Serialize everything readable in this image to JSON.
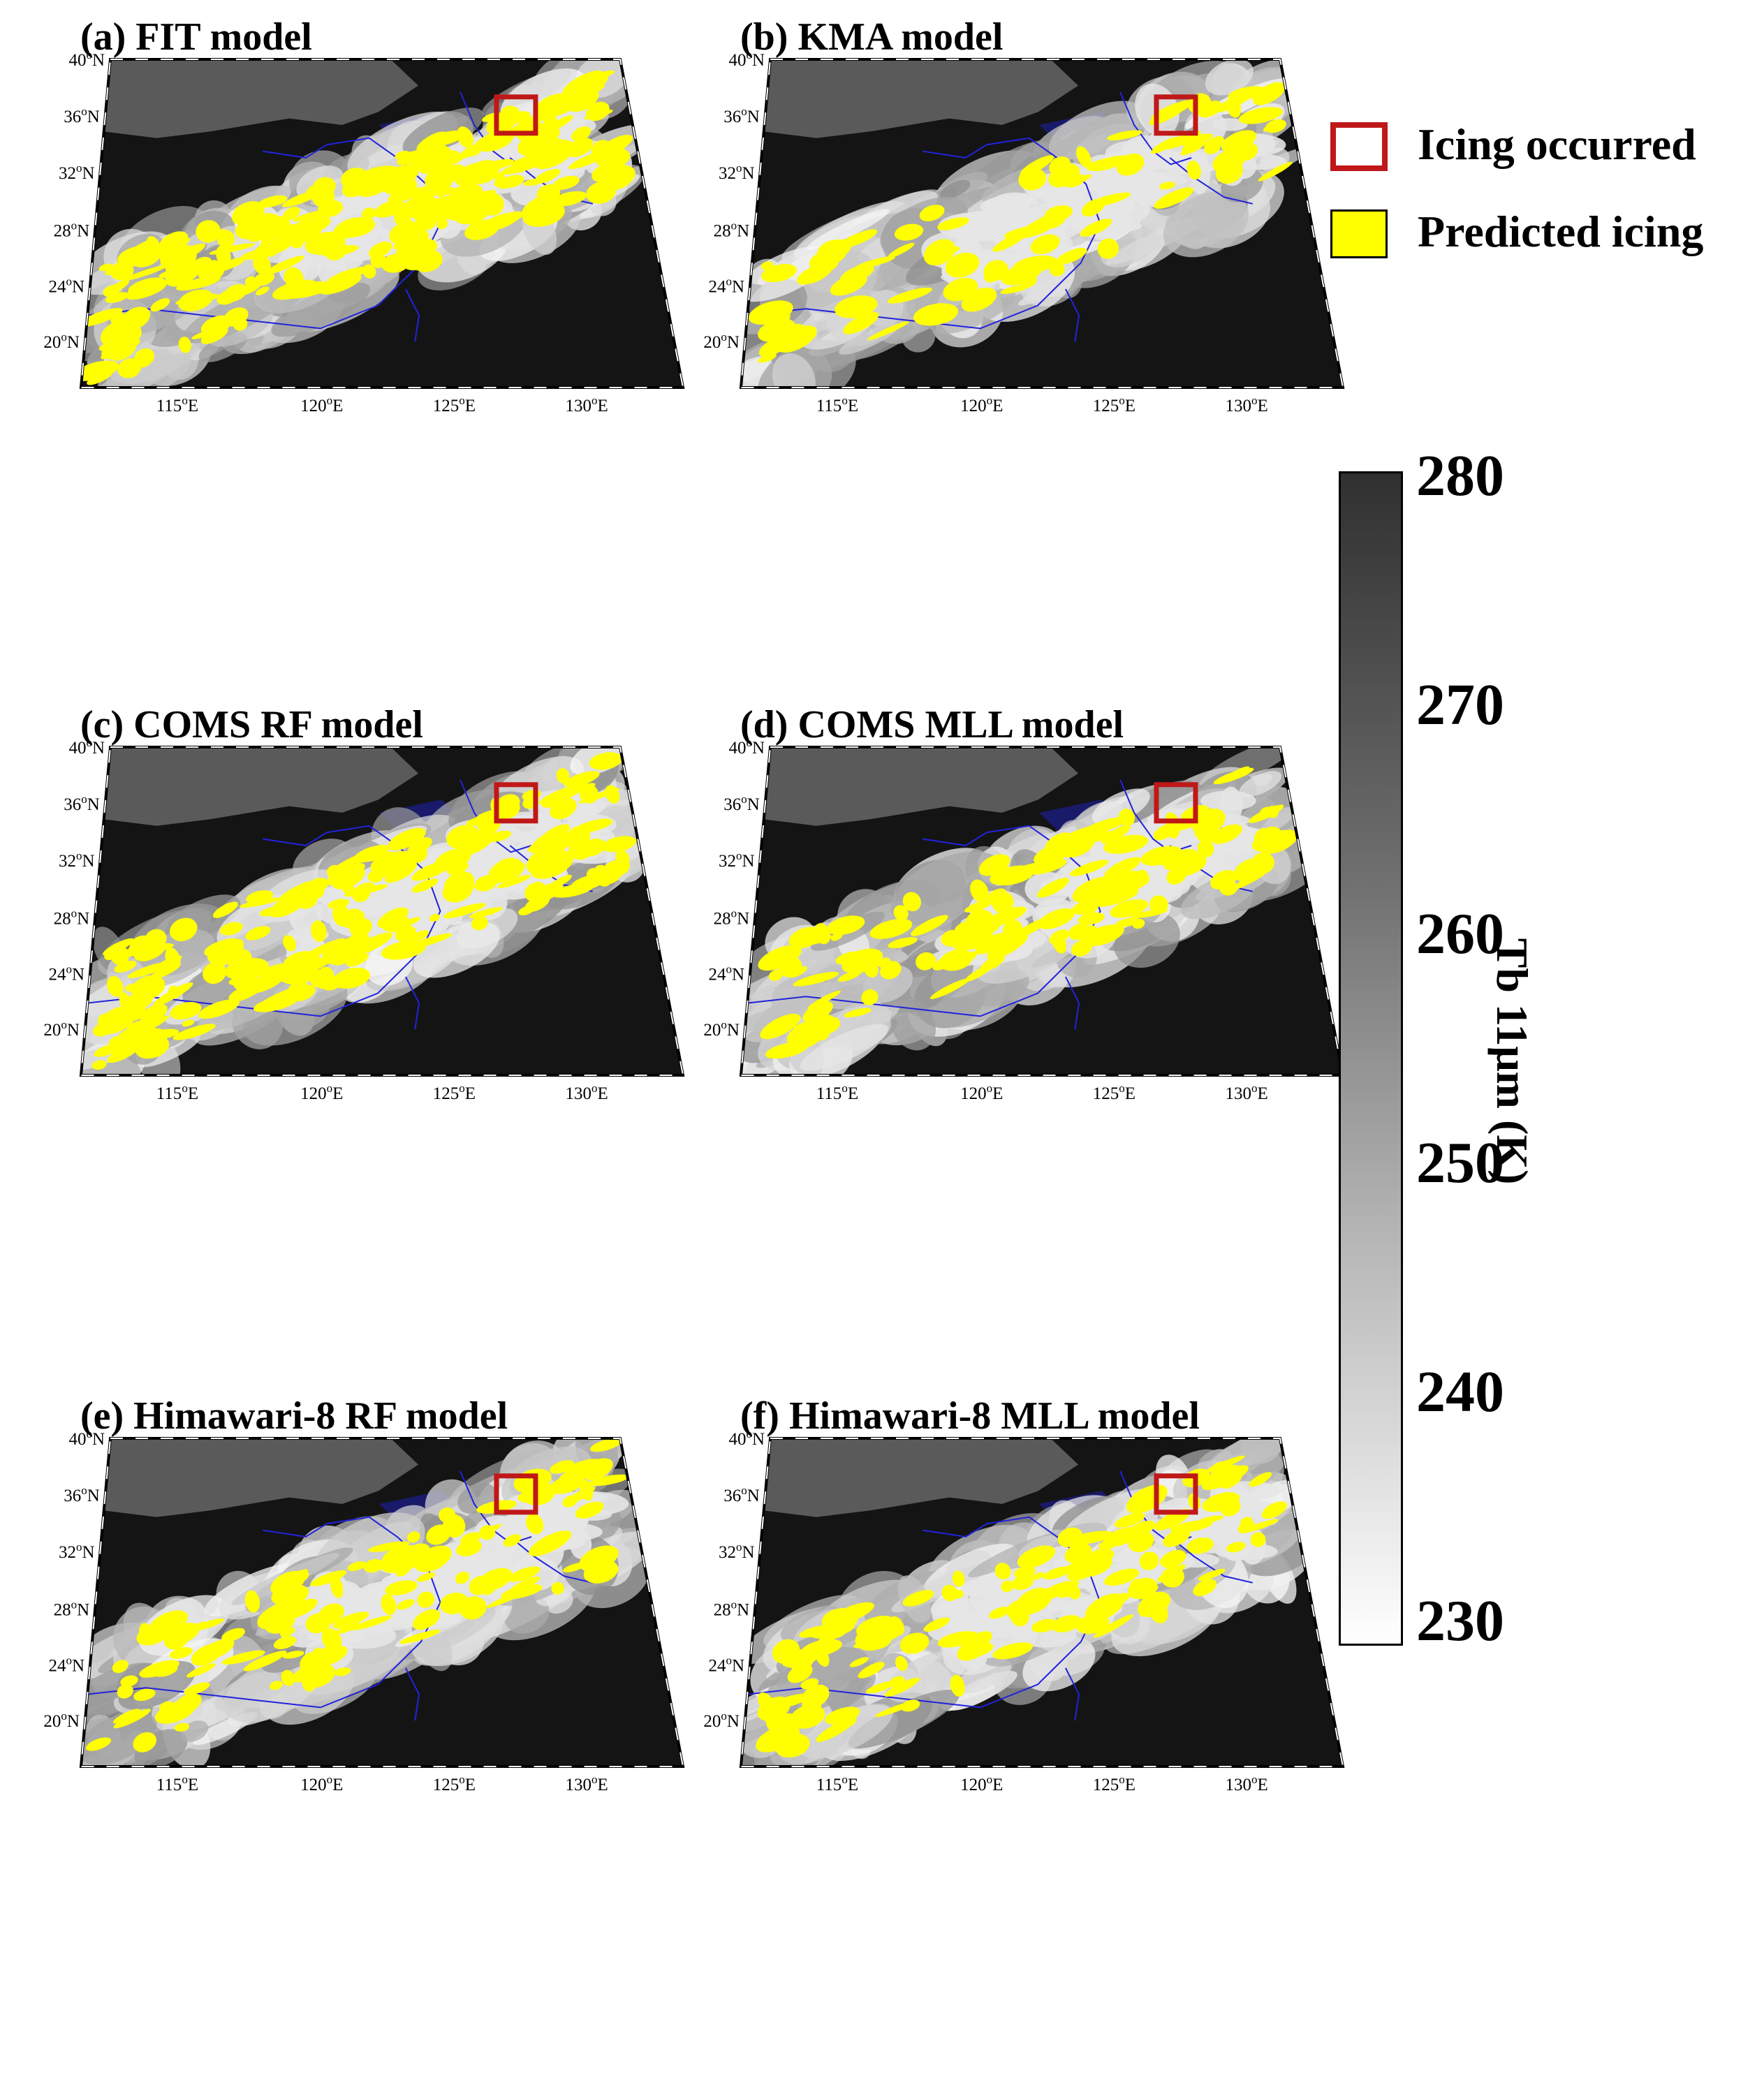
{
  "panels": [
    {
      "id": "a",
      "title": "(a) FIT model",
      "icing_density": 0.55
    },
    {
      "id": "b",
      "title": "(b) KMA model",
      "icing_density": 0.22
    },
    {
      "id": "c",
      "title": "(c) COMS RF model",
      "icing_density": 0.45
    },
    {
      "id": "d",
      "title": "(d) COMS MLL model",
      "icing_density": 0.3
    },
    {
      "id": "e",
      "title": "(e) Himawari-8 RF model",
      "icing_density": 0.28
    },
    {
      "id": "f",
      "title": "(f) Himawari-8 MLL model",
      "icing_density": 0.3
    }
  ],
  "lat_labels": [
    "40°N",
    "36°N",
    "32°N",
    "28°N",
    "24°N",
    "20°N"
  ],
  "lon_labels": [
    "115°E",
    "120°E",
    "125°E",
    "130°E"
  ],
  "legend": {
    "items": [
      {
        "label": "Icing occurred",
        "color": "#c01818",
        "style": "outline"
      },
      {
        "label": "Predicted icing",
        "color": "#ffff00",
        "style": "fill"
      }
    ]
  },
  "colorbar": {
    "label": "Tb 11μm  (K)",
    "ticks": [
      "280",
      "270",
      "260",
      "250",
      "240",
      "230"
    ],
    "range": [
      230,
      280
    ],
    "colors": {
      "low": "#ffffff",
      "high": "#303030"
    }
  },
  "colors": {
    "map_background": "#141414",
    "land": "#5a5a5a",
    "coastline": "#2222dd",
    "cloud": "#e6e6e6",
    "icing": "#ffff00",
    "icing_box": "#c01818"
  }
}
